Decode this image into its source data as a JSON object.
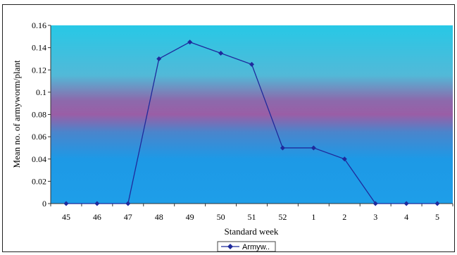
{
  "chart_data": {
    "type": "line",
    "categories": [
      "45",
      "46",
      "47",
      "48",
      "49",
      "50",
      "51",
      "52",
      "1",
      "2",
      "3",
      "4",
      "5"
    ],
    "series": [
      {
        "name": "Armyw..",
        "values": [
          0,
          0,
          0,
          0.13,
          0.145,
          0.135,
          0.125,
          0.05,
          0.05,
          0.04,
          0,
          0,
          0
        ],
        "color": "#1f2a9c"
      }
    ],
    "title": "",
    "xlabel": "Standard week",
    "ylabel": "Mean no. of armyworm/plant",
    "ylim": [
      0,
      0.16
    ],
    "yticks": [
      "0",
      "0.02",
      "0.04",
      "0.06",
      "0.08",
      "0.1",
      "0.12",
      "0.14",
      "0.16"
    ],
    "grid": false,
    "legend_position": "bottom",
    "plot_background": [
      "#29c9e6",
      "#9a5ea6",
      "#1e9be6"
    ]
  }
}
